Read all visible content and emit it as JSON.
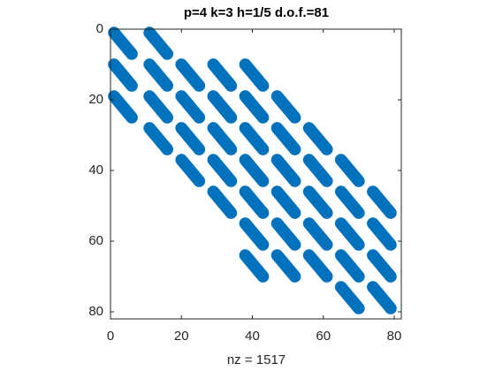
{
  "chart_data": {
    "type": "spy",
    "title": "p=4 k=3 h=1/5 d.o.f.=81",
    "xlabel": "nz = 1517",
    "xlim": [
      0,
      82
    ],
    "ylim": [
      0,
      82
    ],
    "xticks": [
      0,
      20,
      40,
      60,
      80
    ],
    "yticks": [
      0,
      20,
      40,
      60,
      80
    ],
    "color": "#0072bd",
    "streak_length": 7,
    "streaks": [
      {
        "row": 0,
        "col": 0
      },
      {
        "row": 0,
        "col": 10
      },
      {
        "row": 9,
        "col": 0
      },
      {
        "row": 9,
        "col": 10
      },
      {
        "row": 9,
        "col": 19
      },
      {
        "row": 9,
        "col": 28
      },
      {
        "row": 9,
        "col": 37
      },
      {
        "row": 18,
        "col": 0
      },
      {
        "row": 18,
        "col": 10
      },
      {
        "row": 18,
        "col": 19
      },
      {
        "row": 18,
        "col": 28
      },
      {
        "row": 18,
        "col": 37
      },
      {
        "row": 18,
        "col": 46
      },
      {
        "row": 27,
        "col": 10
      },
      {
        "row": 27,
        "col": 19
      },
      {
        "row": 27,
        "col": 28
      },
      {
        "row": 27,
        "col": 37
      },
      {
        "row": 27,
        "col": 46
      },
      {
        "row": 27,
        "col": 55
      },
      {
        "row": 36,
        "col": 19
      },
      {
        "row": 36,
        "col": 28
      },
      {
        "row": 36,
        "col": 37
      },
      {
        "row": 36,
        "col": 46
      },
      {
        "row": 36,
        "col": 55
      },
      {
        "row": 36,
        "col": 64
      },
      {
        "row": 45,
        "col": 28
      },
      {
        "row": 45,
        "col": 37
      },
      {
        "row": 45,
        "col": 46
      },
      {
        "row": 45,
        "col": 55
      },
      {
        "row": 45,
        "col": 64
      },
      {
        "row": 45,
        "col": 73
      },
      {
        "row": 54,
        "col": 37
      },
      {
        "row": 54,
        "col": 46
      },
      {
        "row": 54,
        "col": 55
      },
      {
        "row": 54,
        "col": 64
      },
      {
        "row": 54,
        "col": 73
      },
      {
        "row": 63,
        "col": 37
      },
      {
        "row": 63,
        "col": 46
      },
      {
        "row": 63,
        "col": 55
      },
      {
        "row": 63,
        "col": 64
      },
      {
        "row": 63,
        "col": 73
      },
      {
        "row": 72,
        "col": 64
      },
      {
        "row": 72,
        "col": 73
      }
    ]
  }
}
